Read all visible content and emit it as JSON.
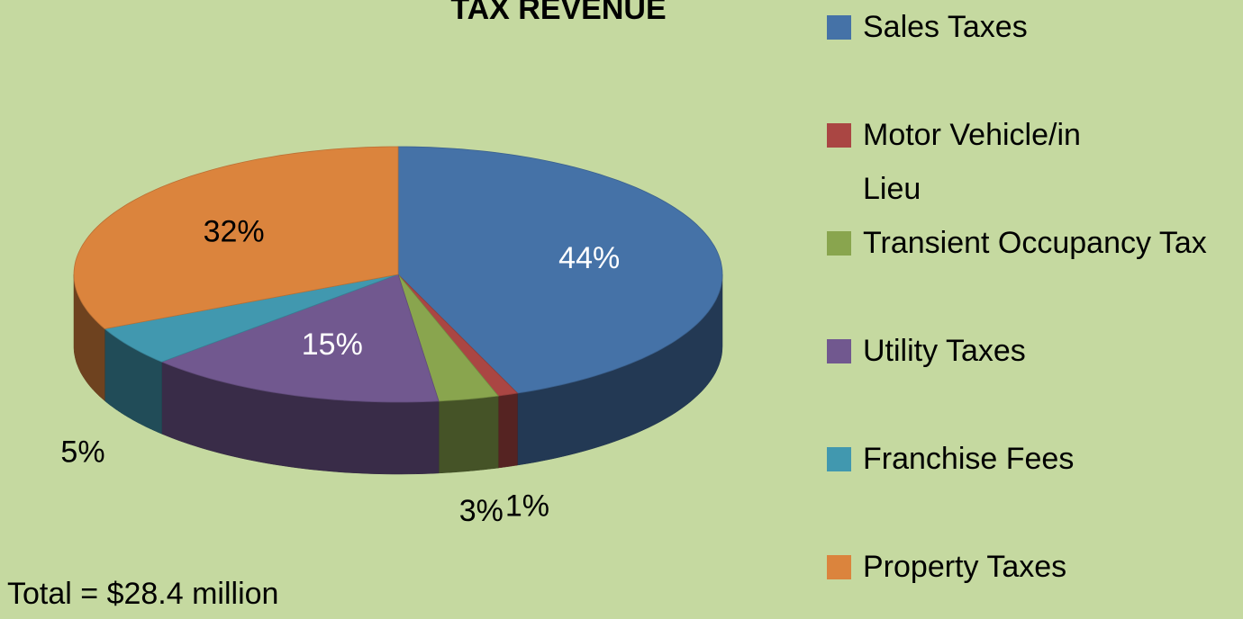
{
  "chart_data": {
    "type": "pie",
    "title": "TAX REVENUE",
    "categories": [
      "Sales Taxes",
      "Motor Vehicle/in Lieu",
      "Transient Occupancy Tax",
      "Utility Taxes",
      "Franchise Fees",
      "Property Taxes"
    ],
    "values": [
      44,
      1,
      3,
      15,
      5,
      32
    ],
    "value_labels": [
      "44%",
      "1%",
      "3%",
      "15%",
      "5%",
      "32%"
    ],
    "colors": [
      "#4572a7",
      "#aa4643",
      "#89a54e",
      "#71588f",
      "#4198af",
      "#db843d"
    ],
    "annotation": "Total = $28.4 million",
    "legend": "right"
  }
}
